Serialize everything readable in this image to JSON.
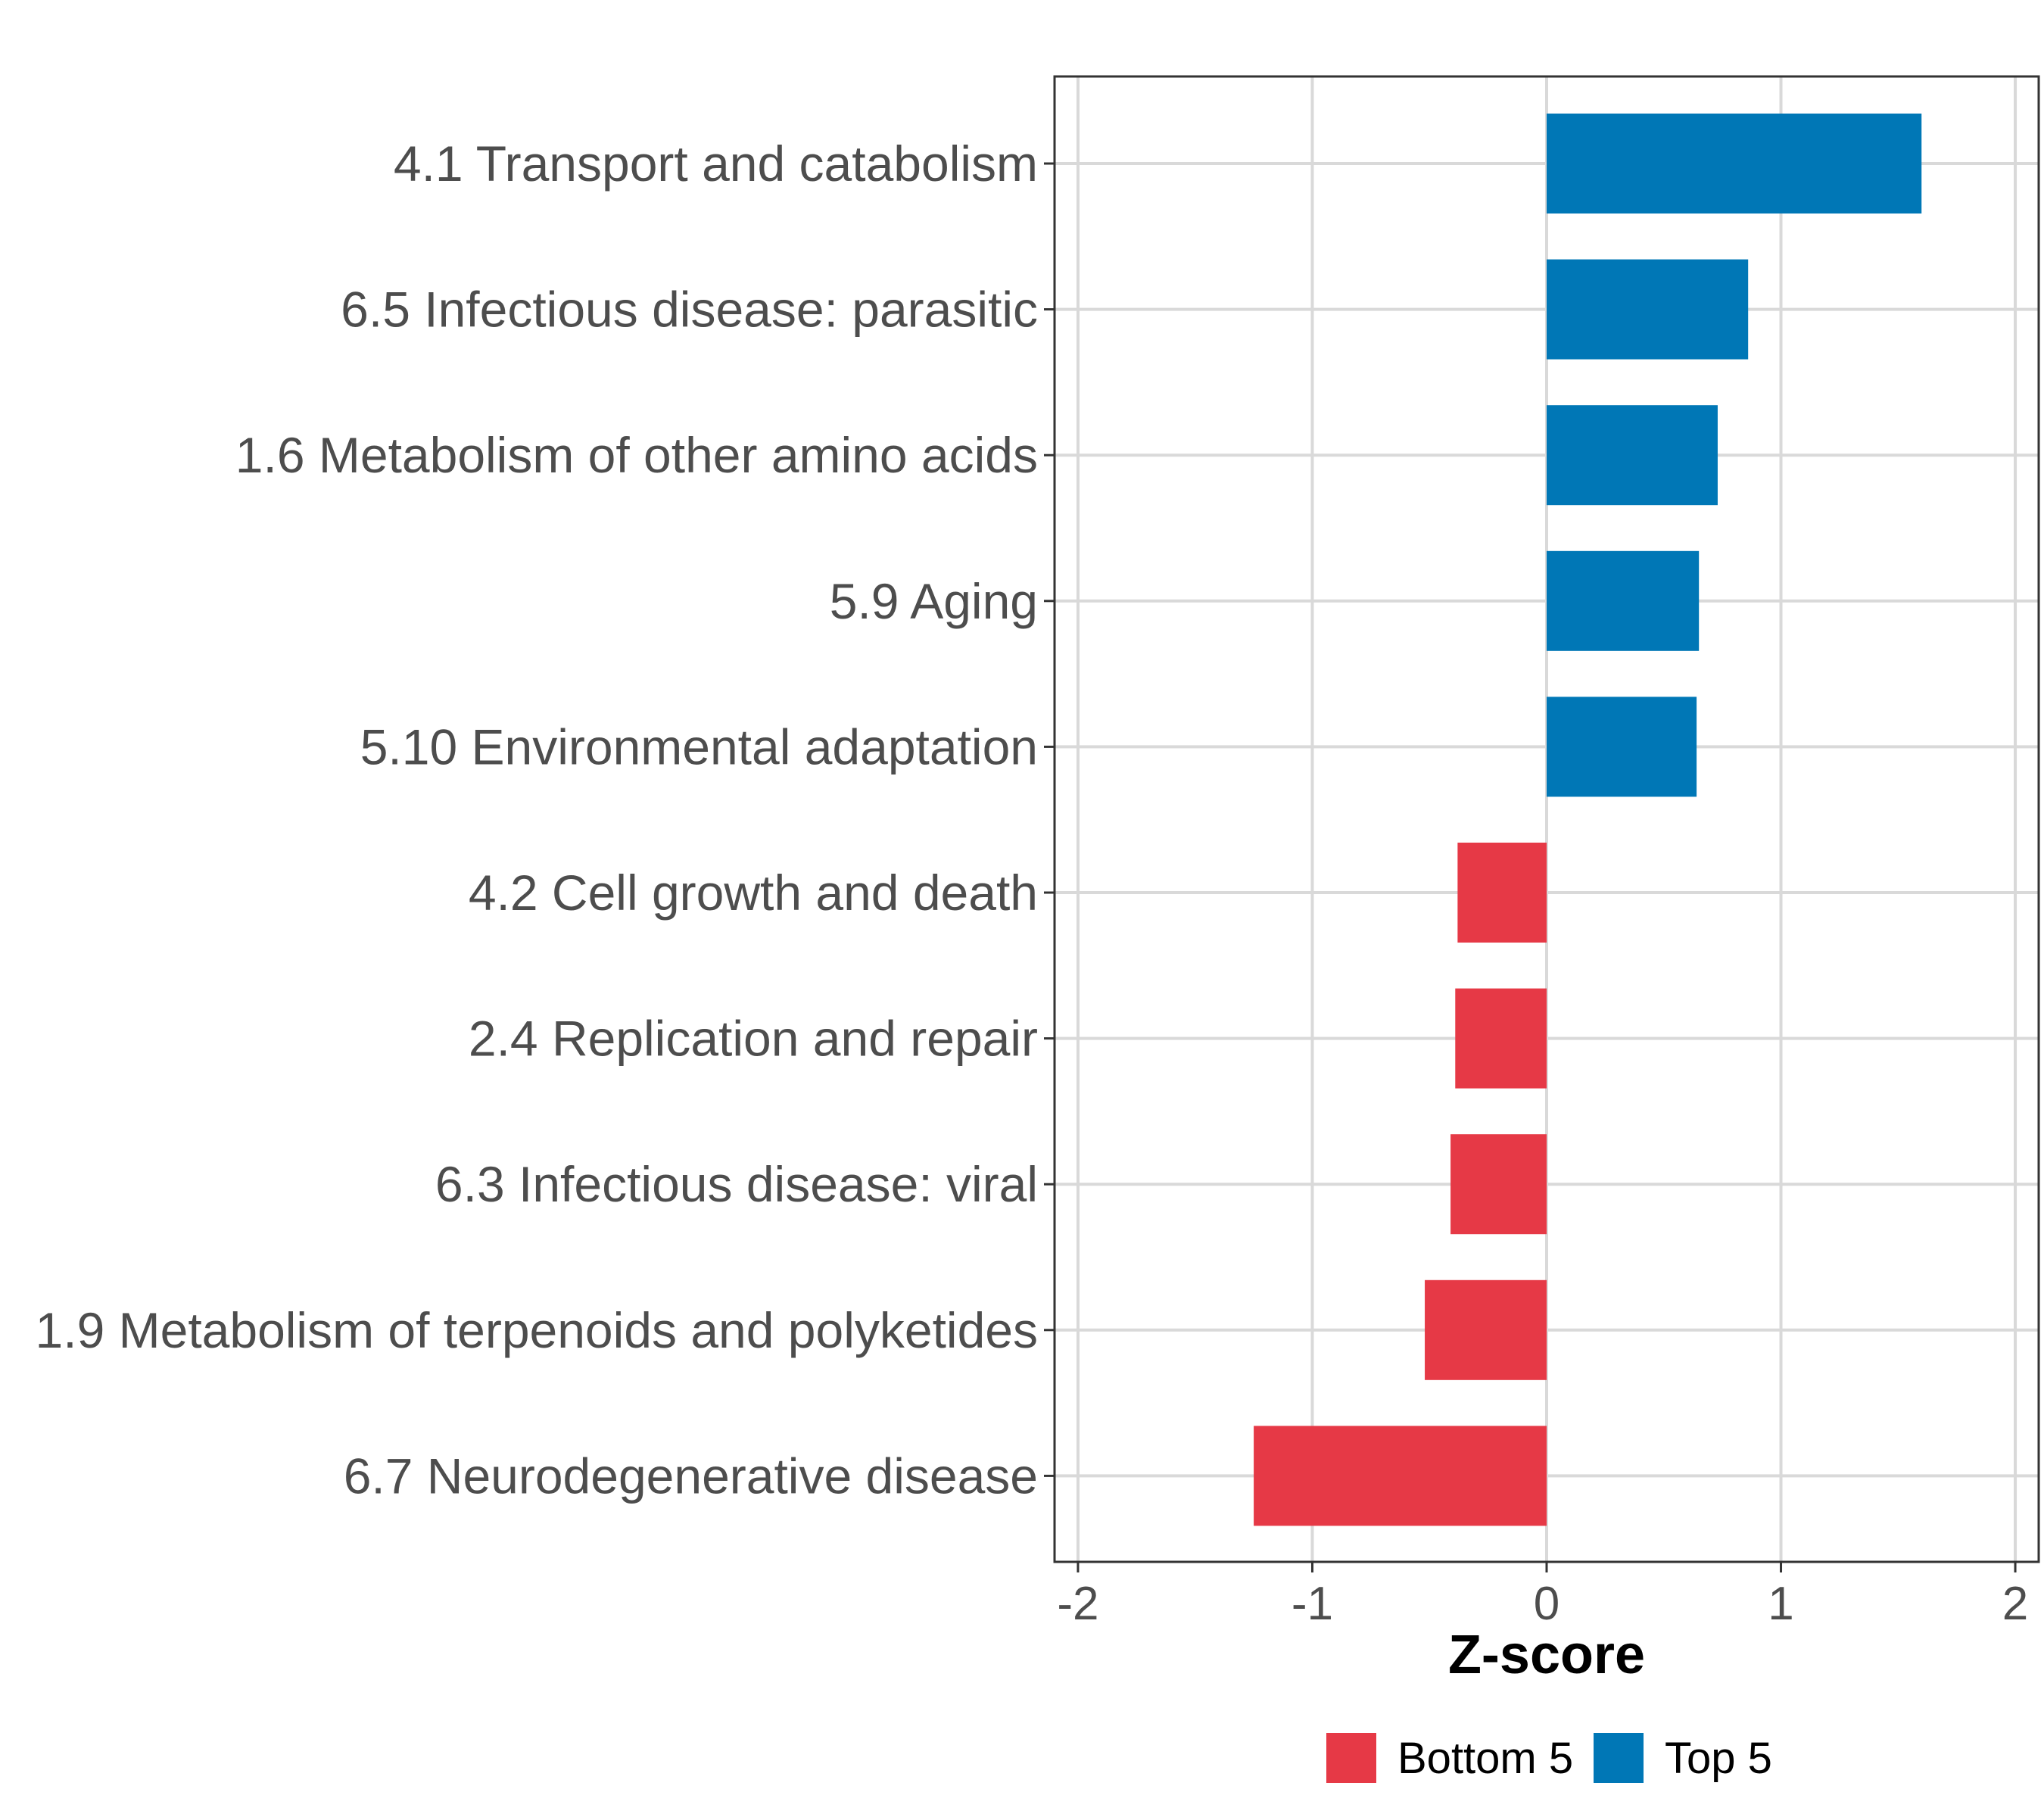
{
  "chart_data": {
    "type": "bar",
    "orientation": "horizontal",
    "title": "",
    "xlabel": "Z-score",
    "ylabel": "",
    "xlim": [
      -2.1,
      2.1
    ],
    "x_ticks": [
      -2,
      -1,
      0,
      1,
      2
    ],
    "x_tick_labels": [
      "-2",
      "-1",
      "0",
      "1",
      "2"
    ],
    "grid": true,
    "legend_position": "bottom",
    "categories": [
      "4.1 Transport and catabolism",
      "6.5 Infectious disease: parasitic",
      "1.6 Metabolism of other amino acids",
      "5.9 Aging",
      "5.10 Environmental adaptation",
      "4.2 Cell growth and death",
      "2.4 Replication and repair",
      "6.3 Infectious disease: viral",
      "1.9 Metabolism of terpenoids and polyketides",
      "6.7 Neurodegenerative disease"
    ],
    "values": [
      1.6,
      0.86,
      0.73,
      0.65,
      0.64,
      -0.38,
      -0.39,
      -0.41,
      -0.52,
      -1.25
    ],
    "groups": [
      "Top 5",
      "Top 5",
      "Top 5",
      "Top 5",
      "Top 5",
      "Bottom 5",
      "Bottom 5",
      "Bottom 5",
      "Bottom 5",
      "Bottom 5"
    ],
    "legend": [
      {
        "name": "Bottom 5",
        "color": "#E63946"
      },
      {
        "name": "Top 5",
        "color": "#0077B6"
      }
    ]
  }
}
